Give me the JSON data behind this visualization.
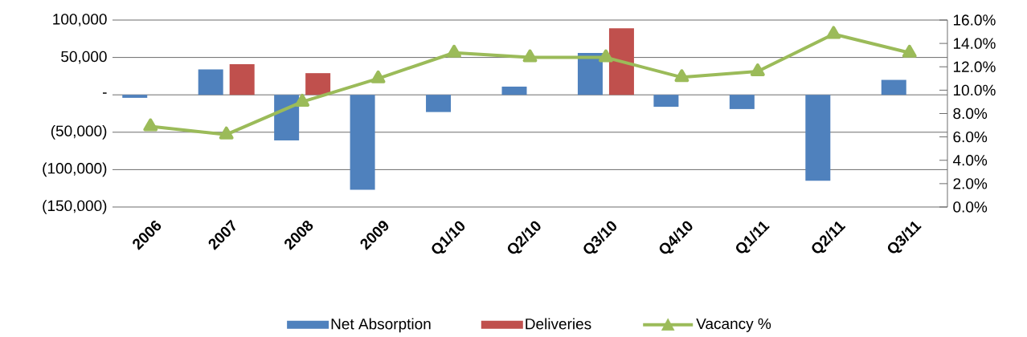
{
  "chart_data": {
    "type": "bar",
    "categories": [
      "2006",
      "2007",
      "2008",
      "2009",
      "Q1/10",
      "Q2/10",
      "Q3/10",
      "Q4/10",
      "Q1/11",
      "Q2/11",
      "Q3/11"
    ],
    "series": [
      {
        "name": "Net Absorption",
        "color": "#4f81bd",
        "values": [
          -4000,
          34000,
          -61000,
          -127000,
          -23000,
          11000,
          56000,
          -16000,
          -19000,
          -115000,
          20000
        ]
      },
      {
        "name": "Deliveries",
        "color": "#c0504d",
        "values": [
          null,
          41000,
          29000,
          null,
          null,
          null,
          89000,
          null,
          null,
          null,
          null
        ]
      },
      {
        "name": "Vacancy %",
        "type": "line",
        "axis": "y2",
        "marker": "triangle",
        "color": "#9bbb59",
        "values": [
          6.9,
          6.2,
          9.0,
          11.0,
          13.2,
          12.8,
          12.8,
          11.1,
          11.6,
          14.8,
          13.2
        ]
      }
    ],
    "ylim": [
      -150000,
      100000
    ],
    "yticks": [
      {
        "value": -150000,
        "label": "(150,000)"
      },
      {
        "value": -100000,
        "label": "(100,000)"
      },
      {
        "value": -50000,
        "label": "(50,000)"
      },
      {
        "value": 0,
        "label": "-"
      },
      {
        "value": 50000,
        "label": "50,000"
      },
      {
        "value": 100000,
        "label": "100,000"
      }
    ],
    "y2lim": [
      0,
      16
    ],
    "y2ticks": [
      {
        "value": 0,
        "label": "0.0%"
      },
      {
        "value": 2,
        "label": "2.0%"
      },
      {
        "value": 4,
        "label": "4.0%"
      },
      {
        "value": 6,
        "label": "6.0%"
      },
      {
        "value": 8,
        "label": "8.0%"
      },
      {
        "value": 10,
        "label": "10.0%"
      },
      {
        "value": 12,
        "label": "12.0%"
      },
      {
        "value": 14,
        "label": "14.0%"
      },
      {
        "value": 16,
        "label": "16.0%"
      }
    ],
    "grid": "y",
    "legend": "bottom"
  }
}
